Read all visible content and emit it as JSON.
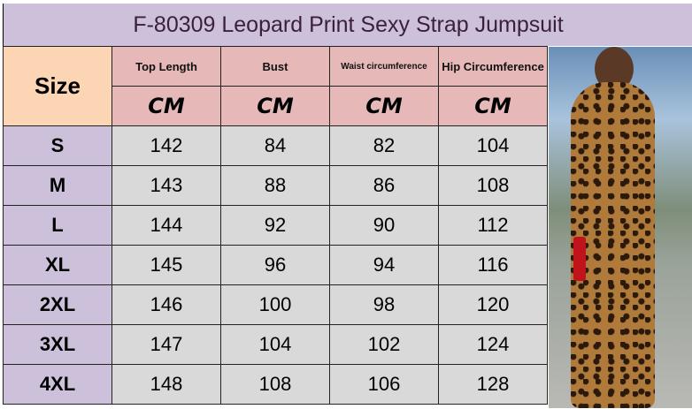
{
  "title": "F-80309 Leopard Print Sexy Strap Jumpsuit",
  "table": {
    "size_header": "Size",
    "columns": [
      "Top Length",
      "Bust",
      "Waist circumference",
      "Hip Circumference"
    ],
    "unit": "CM",
    "rows": [
      {
        "size": "S",
        "values": [
          "142",
          "84",
          "82",
          "104"
        ]
      },
      {
        "size": "M",
        "values": [
          "143",
          "88",
          "86",
          "108"
        ]
      },
      {
        "size": "L",
        "values": [
          "144",
          "92",
          "90",
          "112"
        ]
      },
      {
        "size": "XL",
        "values": [
          "145",
          "96",
          "94",
          "116"
        ]
      },
      {
        "size": "2XL",
        "values": [
          "146",
          "100",
          "98",
          "120"
        ]
      },
      {
        "size": "3XL",
        "values": [
          "147",
          "104",
          "102",
          "124"
        ]
      },
      {
        "size": "4XL",
        "values": [
          "148",
          "108",
          "106",
          "128"
        ]
      }
    ]
  },
  "colors": {
    "title_bg": "#ccc0da",
    "size_header_bg": "#fcd5b4",
    "header_bg": "#e6b8b7",
    "size_col_bg": "#ccc0da",
    "cell_bg": "#d9d9d9"
  }
}
